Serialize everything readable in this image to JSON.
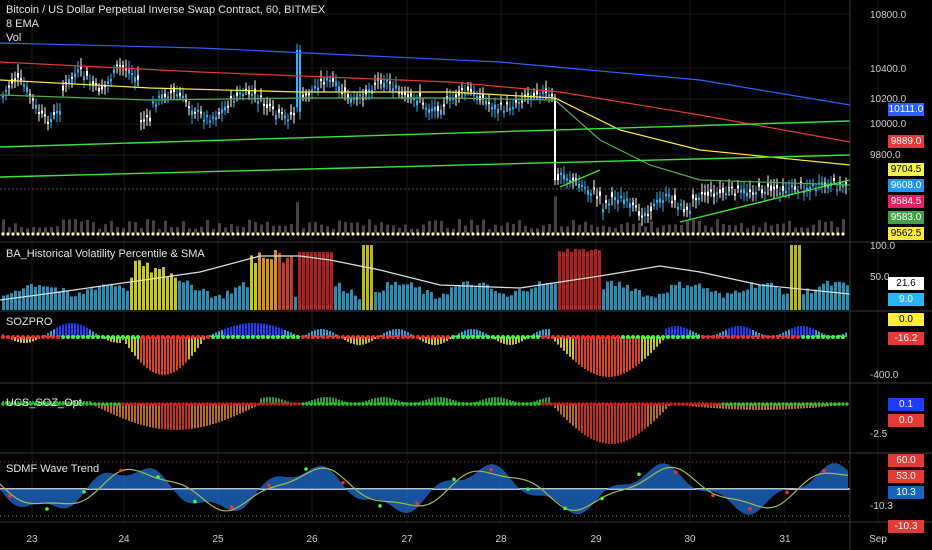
{
  "header": {
    "title": "Bitcoin / US Dollar Perpetual Inverse Swap Contract, 60, BITMEX",
    "indicator1": "8 EMA",
    "indicator2": "Vol"
  },
  "panes": {
    "hv": {
      "title": "BA_Historical Volatility Percentile & SMA"
    },
    "soz": {
      "title": "SOZPRO"
    },
    "ucs": {
      "title": "UCS_SOZ_Opt"
    },
    "sdmf": {
      "title": "SDMF Wave Trend"
    }
  },
  "price_axis": {
    "ticks": [
      "10800.0",
      "10400.0",
      "10200.0",
      "10000.0",
      "9800.0"
    ],
    "tags": [
      {
        "text": "10111.0",
        "bg": "#2962ff",
        "fg": "#ffffff"
      },
      {
        "text": "9889.0",
        "bg": "#e53935",
        "fg": "#ffffff"
      },
      {
        "text": "9704.5",
        "bg": "#f2f24a",
        "fg": "#000000"
      },
      {
        "text": "9608.0",
        "bg": "#2196f3",
        "fg": "#ffffff"
      },
      {
        "text": "9584.5",
        "bg": "#e91e63",
        "fg": "#ffffff"
      },
      {
        "text": "9583.0",
        "bg": "#43a047",
        "fg": "#ffffff"
      },
      {
        "text": "9562.5",
        "bg": "#ffeb3b",
        "fg": "#000000"
      }
    ]
  },
  "hv_axis": {
    "ticks": [
      "100.0",
      "50.0"
    ],
    "tags": [
      {
        "text": "21.6",
        "bg": "#ffffff",
        "fg": "#000000"
      },
      {
        "text": "9.0",
        "bg": "#29b6f6",
        "fg": "#ffffff"
      }
    ]
  },
  "soz_axis": {
    "ticks": [
      "-400.0"
    ],
    "tags": [
      {
        "text": "0.0",
        "bg": "#ffeb3b",
        "fg": "#000000"
      },
      {
        "text": "-16.2",
        "bg": "#e53935",
        "fg": "#ffffff"
      }
    ]
  },
  "ucs_axis": {
    "ticks": [
      "-2.5"
    ],
    "tags": [
      {
        "text": "0.1",
        "bg": "#1e3cff",
        "fg": "#ffffff"
      },
      {
        "text": "0.0",
        "bg": "#e53935",
        "fg": "#ffffff"
      }
    ]
  },
  "sdmf_axis": {
    "ticks": [
      "-10.3"
    ],
    "tags": [
      {
        "text": "60.0",
        "bg": "#e53935",
        "fg": "#ffffff"
      },
      {
        "text": "53.0",
        "bg": "#e53935",
        "fg": "#ffffff"
      },
      {
        "text": "10.3",
        "bg": "#1565c0",
        "fg": "#ffffff"
      },
      {
        "text": "-10.3",
        "bg": "#e53935",
        "fg": "#ffffff"
      }
    ]
  },
  "time_axis": {
    "labels": [
      "23",
      "24",
      "25",
      "26",
      "27",
      "28",
      "29",
      "30",
      "31",
      "Sep"
    ]
  },
  "colors": {
    "background": "#000000",
    "grid": "#1a1a1a",
    "candle_up": "#29b6f6",
    "candle_down": "#ffffff",
    "ema_fast": "#4caf50",
    "ema_mid": "#ffeb3b",
    "ema_slow": "#e53935",
    "ema_long": "#2962ff",
    "trendline": "#39e639",
    "volume_dots": "#fff3b0"
  }
}
